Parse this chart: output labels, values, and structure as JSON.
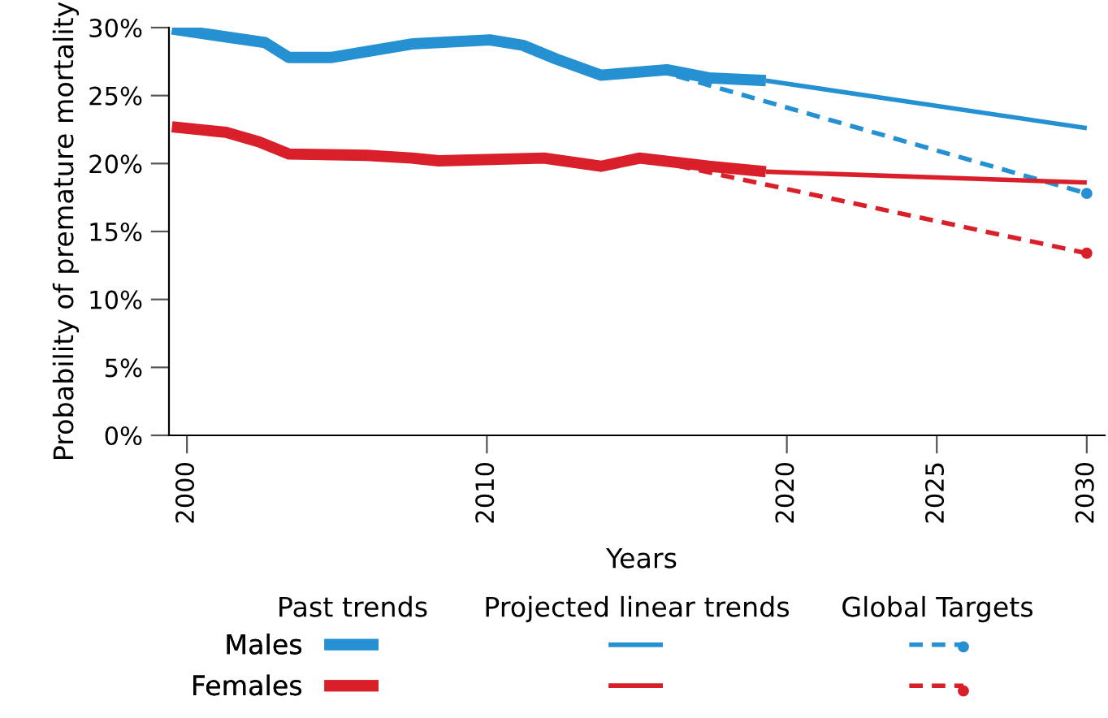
{
  "chart_data": {
    "type": "line",
    "xlabel": "Years",
    "ylabel": "Probability of premature mortality",
    "xlim": [
      1999.4,
      2030.6
    ],
    "xticks": [
      2000,
      2010,
      2020,
      2025,
      2030
    ],
    "ylim": [
      0,
      30
    ],
    "yticks": [
      {
        "value": 0,
        "label": "0%"
      },
      {
        "value": 5,
        "label": "5%"
      },
      {
        "value": 10,
        "label": "10%"
      },
      {
        "value": 15,
        "label": "15%"
      },
      {
        "value": 20,
        "label": "20%"
      },
      {
        "value": 25,
        "label": "25%"
      },
      {
        "value": 30,
        "label": "30%"
      }
    ],
    "grid": false,
    "legend": "bottom",
    "annotations": [
      "Past trends",
      "Projected linear trends",
      "Global Targets"
    ],
    "series": [
      {
        "name": "Males",
        "color": "#2590d2",
        "line_style": "solid",
        "x": [
          1999.5,
          2002.6,
          2003.4,
          2004.8,
          2007.5,
          2010.1,
          2011.2,
          2012.3,
          2013.8,
          2016,
          2017.4,
          2019.3
        ],
        "values": [
          29.9,
          28.9,
          27.8,
          27.8,
          28.8,
          29.1,
          28.7,
          27.7,
          26.5,
          26.9,
          26.3,
          26.1
        ]
      },
      {
        "color": "#2590d2",
        "line_style": "solid",
        "x": [
          2019.3,
          2030
        ],
        "values": [
          26.1,
          22.6
        ]
      },
      {
        "color": "#2590d2",
        "line_style": "dashed",
        "marker": "circle",
        "x": [
          2015.6,
          2030
        ],
        "values": [
          26.9,
          17.8
        ]
      },
      {
        "name": "Females",
        "color": "#d9202a",
        "line_style": "solid",
        "x": [
          1999.5,
          2001.3,
          2002.4,
          2003.4,
          2006,
          2007.5,
          2008.4,
          2011.9,
          2013.8,
          2015.1,
          2017.4,
          2019.3
        ],
        "values": [
          22.7,
          22.3,
          21.6,
          20.7,
          20.6,
          20.4,
          20.2,
          20.4,
          19.8,
          20.4,
          19.8,
          19.4
        ]
      },
      {
        "color": "#d9202a",
        "line_style": "solid",
        "x": [
          2019.3,
          2030
        ],
        "values": [
          19.4,
          18.6
        ]
      },
      {
        "color": "#d9202a",
        "line_style": "dashed",
        "marker": "circle",
        "x": [
          2015.6,
          2030
        ],
        "values": [
          20.2,
          13.4
        ]
      }
    ]
  }
}
